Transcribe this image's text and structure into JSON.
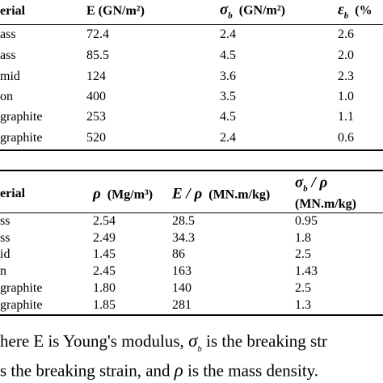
{
  "table1": {
    "header": [
      "erial",
      "E (GN/m²)",
      {
        "symbol": "σ",
        "sub": "b",
        "unit": "(GN/m²)"
      },
      {
        "symbol": "ε",
        "sub": "b",
        "unit": "(%"
      }
    ],
    "rows": [
      [
        "ass",
        "72.4",
        "2.4",
        "2.6"
      ],
      [
        "ass",
        "85.5",
        "4.5",
        "2.0"
      ],
      [
        "mid",
        "124",
        "3.6",
        "2.3"
      ],
      [
        "on",
        "400",
        "3.5",
        "1.0"
      ],
      [
        "graphite",
        "253",
        "4.5",
        "1.1"
      ],
      [
        " graphite",
        "520",
        "2.4",
        "0.6"
      ]
    ]
  },
  "table2": {
    "header": [
      "erial",
      {
        "symbol": "ρ",
        "unit": "(Mg/m³)"
      },
      {
        "symbol": "E / ρ",
        "unit": "(MN.m/kg)"
      },
      {
        "symbol": "σ",
        "sub": "b",
        "after": " / ρ",
        "unit": "(MN.m/kg)"
      }
    ],
    "rows": [
      [
        "ss",
        "2.54",
        "28.5",
        "0.95"
      ],
      [
        "ss",
        "2.49",
        "34.3",
        "1.8"
      ],
      [
        "id",
        "1.45",
        "86",
        "2.5"
      ],
      [
        "n",
        "2.45",
        "163",
        "1.43"
      ],
      [
        "graphite",
        "1.80",
        "140",
        "2.5"
      ],
      [
        "graphite",
        "1.85",
        "281",
        "1.3"
      ]
    ]
  },
  "footer": [
    {
      "before": "here E is Young's modulus, ",
      "symbol": "σ",
      "sub": "b",
      "after": " is the breaking str"
    },
    {
      "before": "s the breaking strain, and ",
      "symbol": "ρ",
      "after": " is the mass density."
    }
  ]
}
